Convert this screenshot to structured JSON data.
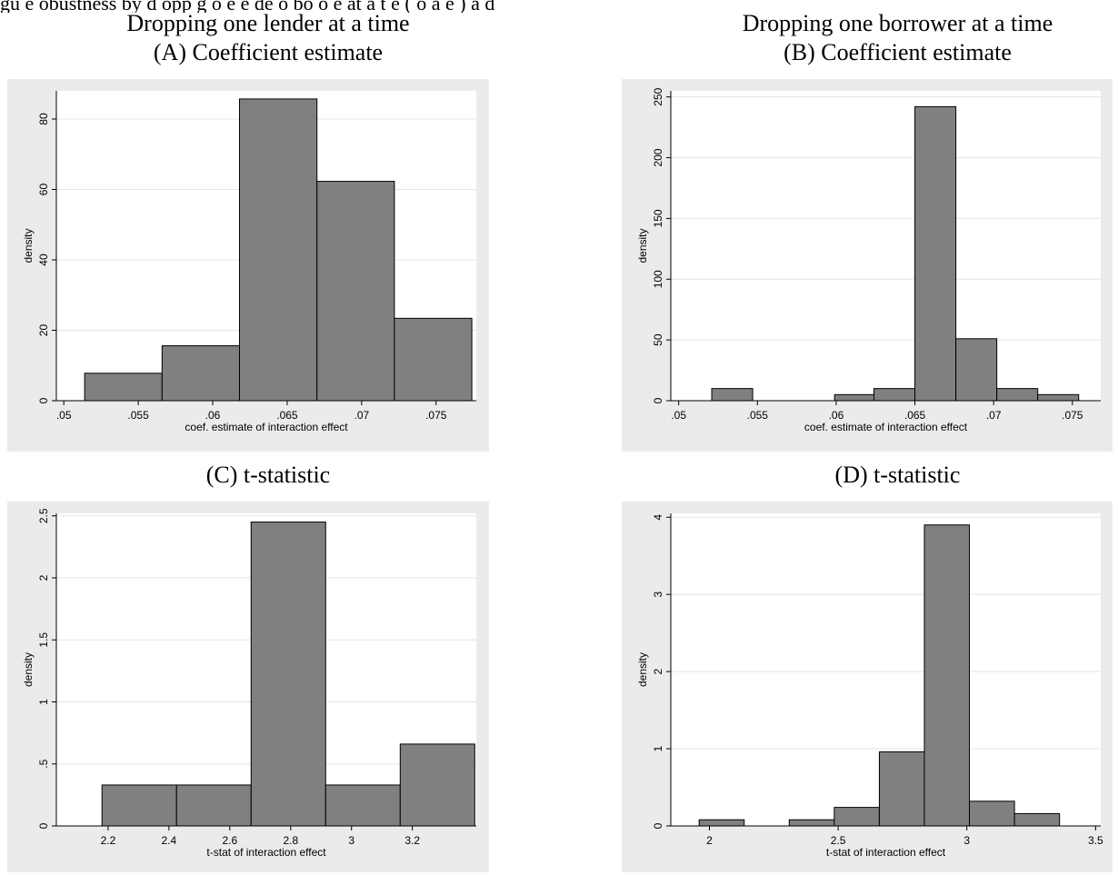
{
  "figure": {
    "header_partial": "gu e      obustness by d opp g o e e de  o bo o e  at a t e ( o a e ) a d",
    "col_left_title": "Dropping one lender at a time",
    "col_right_title": "Dropping one borrower at a time"
  },
  "chart_data": [
    {
      "type": "bar",
      "panel_title": "(A) Coefficient estimate",
      "xlabel": "coef. estimate of interaction effect",
      "ylabel": "density",
      "xlim": [
        0.0495,
        0.0777
      ],
      "ylim": [
        0,
        88
      ],
      "xticks": [
        0.05,
        0.055,
        0.06,
        0.065,
        0.07,
        0.075
      ],
      "xtick_labels": [
        ".05",
        ".055",
        ".06",
        ".065",
        ".07",
        ".075"
      ],
      "yticks": [
        0,
        20,
        40,
        60,
        80
      ],
      "ytick_labels": [
        "0",
        "20",
        "40",
        "60",
        "80"
      ],
      "bins": [
        {
          "x0": 0.0514,
          "x1": 0.0566,
          "value": 7.8
        },
        {
          "x0": 0.0566,
          "x1": 0.0618,
          "value": 15.6
        },
        {
          "x0": 0.0618,
          "x1": 0.067,
          "value": 85.7
        },
        {
          "x0": 0.067,
          "x1": 0.0722,
          "value": 62.3
        },
        {
          "x0": 0.0722,
          "x1": 0.0774,
          "value": 23.4
        }
      ]
    },
    {
      "type": "bar",
      "panel_title": "(B) Coefficient estimate",
      "xlabel": "coef. estimate of interaction effect",
      "ylabel": "density",
      "xlim": [
        0.0495,
        0.0768
      ],
      "ylim": [
        0,
        255
      ],
      "xticks": [
        0.05,
        0.055,
        0.06,
        0.065,
        0.07,
        0.075
      ],
      "xtick_labels": [
        ".05",
        ".055",
        ".06",
        ".065",
        ".07",
        ".075"
      ],
      "yticks": [
        0,
        50,
        100,
        150,
        200,
        250
      ],
      "ytick_labels": [
        "0",
        "50",
        "100",
        "150",
        "200",
        "250"
      ],
      "bins": [
        {
          "x0": 0.0521,
          "x1": 0.0547,
          "value": 10
        },
        {
          "x0": 0.0547,
          "x1": 0.0573,
          "value": 0
        },
        {
          "x0": 0.0573,
          "x1": 0.0599,
          "value": 0
        },
        {
          "x0": 0.0599,
          "x1": 0.0624,
          "value": 5
        },
        {
          "x0": 0.0624,
          "x1": 0.065,
          "value": 10
        },
        {
          "x0": 0.065,
          "x1": 0.0676,
          "value": 242
        },
        {
          "x0": 0.0676,
          "x1": 0.0702,
          "value": 51
        },
        {
          "x0": 0.0702,
          "x1": 0.0728,
          "value": 10
        },
        {
          "x0": 0.0728,
          "x1": 0.0754,
          "value": 5
        }
      ]
    },
    {
      "type": "bar",
      "panel_title": "(C) t-statistic",
      "xlabel": "t-stat of interaction effect",
      "ylabel": "density",
      "xlim": [
        2.03,
        3.41
      ],
      "ylim": [
        0,
        2.52
      ],
      "xticks": [
        2.2,
        2.4,
        2.6,
        2.8,
        3.0,
        3.2
      ],
      "xtick_labels": [
        "2.2",
        "2.4",
        "2.6",
        "2.8",
        "3",
        "3.2"
      ],
      "yticks": [
        0,
        0.5,
        1,
        1.5,
        2,
        2.5
      ],
      "ytick_labels": [
        "0",
        ".5",
        "1",
        "1.5",
        "2",
        "2.5"
      ],
      "bins": [
        {
          "x0": 2.18,
          "x1": 2.425,
          "value": 0.33
        },
        {
          "x0": 2.425,
          "x1": 2.67,
          "value": 0.33
        },
        {
          "x0": 2.67,
          "x1": 2.915,
          "value": 2.45
        },
        {
          "x0": 2.915,
          "x1": 3.16,
          "value": 0.33
        },
        {
          "x0": 3.16,
          "x1": 3.405,
          "value": 0.66
        }
      ]
    },
    {
      "type": "bar",
      "panel_title": "(D) t-statistic",
      "xlabel": "t-stat of interaction effect",
      "ylabel": "density",
      "xlim": [
        1.85,
        3.52
      ],
      "ylim": [
        0,
        4.05
      ],
      "xticks": [
        2,
        2.5,
        3,
        3.5
      ],
      "xtick_labels": [
        "2",
        "2.5",
        "3",
        "3.5"
      ],
      "yticks": [
        0,
        1,
        2,
        3,
        4
      ],
      "ytick_labels": [
        "0",
        "1",
        "2",
        "3",
        "4"
      ],
      "bins": [
        {
          "x0": 1.96,
          "x1": 2.135,
          "value": 0.08
        },
        {
          "x0": 2.135,
          "x1": 2.31,
          "value": 0
        },
        {
          "x0": 2.31,
          "x1": 2.485,
          "value": 0.08
        },
        {
          "x0": 2.485,
          "x1": 2.66,
          "value": 0.24
        },
        {
          "x0": 2.66,
          "x1": 2.835,
          "value": 0.96
        },
        {
          "x0": 2.835,
          "x1": 3.01,
          "value": 3.9
        },
        {
          "x0": 3.01,
          "x1": 3.185,
          "value": 0.32
        },
        {
          "x0": 3.185,
          "x1": 3.36,
          "value": 0.16
        }
      ]
    }
  ]
}
